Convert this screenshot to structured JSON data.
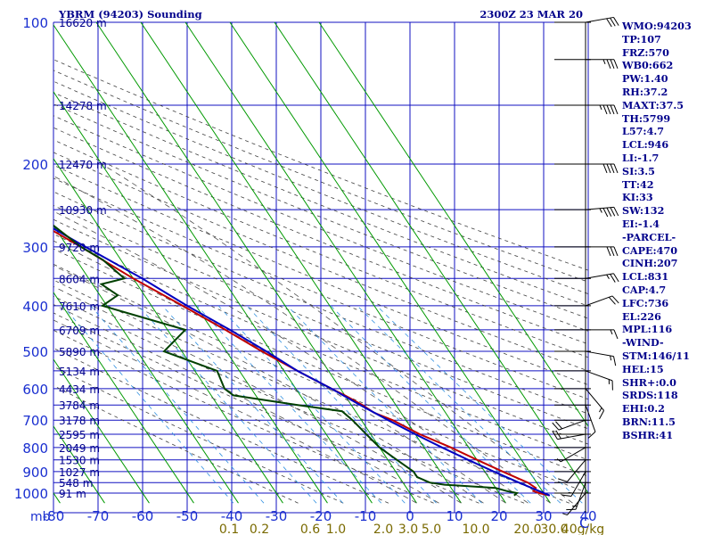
{
  "header": {
    "station": "YBRM (94203) Sounding",
    "time": "2300Z 23 MAR 20"
  },
  "stats": [
    "WMO:94203",
    "TP:107",
    "FRZ:570",
    "WB0:662",
    "PW:1.40",
    "RH:37.2",
    "MAXT:37.5",
    "TH:5799",
    "L57:4.7",
    "LCL:946",
    "LI:-1.7",
    "SI:3.5",
    "TT:42",
    "KI:33",
    "SW:132",
    "EI:-1.4",
    "-PARCEL-",
    "CAPE:470",
    "CINH:207",
    "LCL:831",
    "CAP:4.7",
    "LFC:736",
    "EL:226",
    "MPL:116",
    "-WIND-",
    "STM:146/11",
    "HEL:15",
    "SHR+:0.0",
    "SRDS:118",
    "EHI:0.2",
    "BRN:11.5",
    "BSHR:41"
  ],
  "chart_data": {
    "type": "line",
    "title": "YBRM (94203) Sounding",
    "subtitle": "2300Z 23 MAR 20",
    "y_scale": "log-pressure",
    "ylim": [
      1000,
      100
    ],
    "xlim": [
      -80,
      40
    ],
    "x_unit_label": "C",
    "y_unit_label": "mb",
    "pressure_ticks": [
      100,
      200,
      300,
      400,
      500,
      600,
      700,
      800,
      900,
      1000
    ],
    "temperature_ticks": [
      -80,
      -70,
      -60,
      -50,
      -40,
      -30,
      -20,
      -10,
      0,
      10,
      20,
      30,
      40
    ],
    "mixing_ratio_labels": [
      "0.1",
      "0.2",
      "0.6",
      "1.0",
      "2.0",
      "3.0",
      "5.0",
      "10.0",
      "20.0",
      "30.0",
      "40g/kg"
    ],
    "height_labels": [
      {
        "p": 100,
        "label": "16620 m"
      },
      {
        "p": 150,
        "label": "14278 m"
      },
      {
        "p": 200,
        "label": "12470 m"
      },
      {
        "p": 250,
        "label": "10930 m"
      },
      {
        "p": 300,
        "label": "9720 m"
      },
      {
        "p": 350,
        "label": "8604 m"
      },
      {
        "p": 400,
        "label": "7610 m"
      },
      {
        "p": 450,
        "label": "6709 m"
      },
      {
        "p": 500,
        "label": "5890 m"
      },
      {
        "p": 550,
        "label": "5134 m"
      },
      {
        "p": 600,
        "label": "4434 m"
      },
      {
        "p": 650,
        "label": "3784 m"
      },
      {
        "p": 700,
        "label": "3178 m"
      },
      {
        "p": 750,
        "label": "2595 m"
      },
      {
        "p": 800,
        "label": "2049 m"
      },
      {
        "p": 850,
        "label": "1530 m"
      },
      {
        "p": 900,
        "label": "1027 m"
      },
      {
        "p": 950,
        "label": "548 m"
      },
      {
        "p": 1000,
        "label": "91 m"
      }
    ],
    "series": [
      {
        "role": "temperature",
        "color": "#c00000",
        "points": [
          [
            1012,
            31
          ],
          [
            1000,
            29
          ],
          [
            990,
            28
          ],
          [
            975,
            29
          ],
          [
            950,
            28
          ],
          [
            925,
            26
          ],
          [
            900,
            24
          ],
          [
            850,
            20
          ],
          [
            800,
            16
          ],
          [
            750,
            11
          ],
          [
            700,
            7
          ],
          [
            675,
            4
          ],
          [
            650,
            2.5
          ],
          [
            620,
            0
          ],
          [
            600,
            -2
          ],
          [
            550,
            -7
          ],
          [
            500,
            -12
          ],
          [
            450,
            -17
          ],
          [
            400,
            -23
          ],
          [
            350,
            -30
          ],
          [
            300,
            -37
          ],
          [
            250,
            -46
          ],
          [
            200,
            -56
          ],
          [
            150,
            -67
          ],
          [
            120,
            -74
          ],
          [
            110,
            -76
          ],
          [
            100,
            -78
          ]
        ]
      },
      {
        "role": "parcel",
        "color": "#0000c0",
        "points": [
          [
            1012,
            31
          ],
          [
            950,
            26
          ],
          [
            900,
            22
          ],
          [
            850,
            18
          ],
          [
            800,
            14
          ],
          [
            750,
            10
          ],
          [
            700,
            6
          ],
          [
            650,
            2
          ],
          [
            600,
            -2
          ],
          [
            550,
            -7
          ],
          [
            500,
            -11
          ],
          [
            450,
            -16
          ],
          [
            400,
            -22
          ],
          [
            350,
            -28
          ],
          [
            300,
            -36
          ],
          [
            250,
            -45
          ],
          [
            200,
            -55
          ],
          [
            150,
            -67
          ],
          [
            130,
            -72
          ],
          [
            120,
            -76
          ],
          [
            110,
            -79
          ],
          [
            105,
            -80
          ]
        ]
      },
      {
        "role": "dewpoint",
        "color": "#004000",
        "points": [
          [
            1012,
            23
          ],
          [
            1000,
            24
          ],
          [
            990,
            22
          ],
          [
            975,
            20
          ],
          [
            960,
            9
          ],
          [
            950,
            6
          ],
          [
            925,
            4
          ],
          [
            900,
            4
          ],
          [
            850,
            2
          ],
          [
            800,
            0
          ],
          [
            750,
            -1
          ],
          [
            700,
            -2
          ],
          [
            670,
            -3
          ],
          [
            650,
            -12
          ],
          [
            620,
            -25
          ],
          [
            600,
            -26
          ],
          [
            550,
            -25
          ],
          [
            500,
            -34
          ],
          [
            450,
            -26
          ],
          [
            400,
            -41
          ],
          [
            380,
            -36
          ],
          [
            360,
            -38
          ],
          [
            350,
            -32
          ],
          [
            320,
            -34
          ],
          [
            300,
            -37
          ],
          [
            270,
            -40
          ],
          [
            260,
            -44
          ],
          [
            240,
            -42
          ],
          [
            230,
            -40
          ],
          [
            210,
            -42
          ],
          [
            200,
            -52
          ],
          [
            180,
            -56
          ],
          [
            170,
            -58
          ],
          [
            160,
            -59
          ],
          [
            150,
            -61
          ],
          [
            140,
            -62
          ],
          [
            130,
            -66
          ],
          [
            120,
            -70
          ],
          [
            110,
            -73
          ],
          [
            100,
            -75
          ]
        ]
      }
    ],
    "wind_barbs": [
      {
        "p": 1000,
        "dir": 140,
        "kt": 8
      },
      {
        "p": 950,
        "dir": 160,
        "kt": 15
      },
      {
        "p": 900,
        "dir": 150,
        "kt": 15
      },
      {
        "p": 850,
        "dir": 140,
        "kt": 10
      },
      {
        "p": 800,
        "dir": 120,
        "kt": 5
      },
      {
        "p": 750,
        "dir": 100,
        "kt": 20
      },
      {
        "p": 700,
        "dir": 110,
        "kt": 20
      },
      {
        "p": 650,
        "dir": 200,
        "kt": 10
      },
      {
        "p": 600,
        "dir": 220,
        "kt": 15
      },
      {
        "p": 550,
        "dir": 250,
        "kt": 15
      },
      {
        "p": 500,
        "dir": 260,
        "kt": 15
      },
      {
        "p": 450,
        "dir": 270,
        "kt": 15
      },
      {
        "p": 400,
        "dir": 290,
        "kt": 20
      },
      {
        "p": 350,
        "dir": 280,
        "kt": 25
      },
      {
        "p": 300,
        "dir": 270,
        "kt": 30
      },
      {
        "p": 250,
        "dir": 275,
        "kt": 45
      },
      {
        "p": 200,
        "dir": 270,
        "kt": 40
      },
      {
        "p": 150,
        "dir": 270,
        "kt": 45
      },
      {
        "p": 120,
        "dir": 270,
        "kt": 35
      },
      {
        "p": 100,
        "dir": 280,
        "kt": 30
      }
    ]
  }
}
